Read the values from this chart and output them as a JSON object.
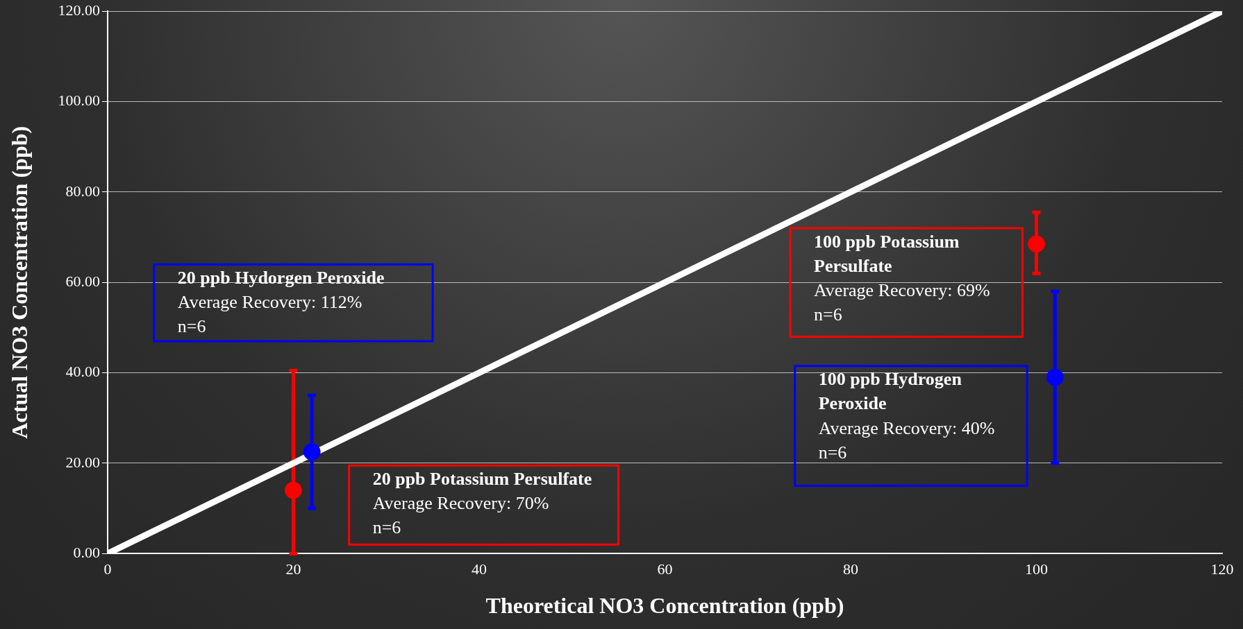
{
  "chart_data": {
    "type": "scatter",
    "xlabel": "Theoretical NO3 Concentration (ppb)",
    "ylabel": "Actual NO3 Concentration (ppb)",
    "xlim": [
      0,
      120
    ],
    "xticks": [
      0,
      20,
      40,
      60,
      80,
      100,
      120
    ],
    "ylim": [
      0,
      120
    ],
    "yticks": [
      {
        "value": 0,
        "label": "0.00"
      },
      {
        "value": 20,
        "label": "20.00"
      },
      {
        "value": 40,
        "label": "40.00"
      },
      {
        "value": 60,
        "label": "60.00"
      },
      {
        "value": 80,
        "label": "80.00"
      },
      {
        "value": 100,
        "label": "100.00"
      },
      {
        "value": 120,
        "label": "120.00"
      }
    ],
    "grid": "y",
    "legend": false,
    "series": [
      {
        "type": "line",
        "color": "#ffffff",
        "x": [
          0,
          120
        ],
        "values": [
          0,
          120
        ]
      },
      {
        "color": "#ff0000",
        "marker": "circle",
        "x": [
          20,
          100
        ],
        "values": [
          14,
          68.5
        ],
        "errors": [
          [
            0,
            40.5
          ],
          [
            62,
            75.5
          ]
        ]
      },
      {
        "color": "#0000ff",
        "marker": "circle",
        "x": [
          22,
          102
        ],
        "values": [
          22.5,
          39
        ],
        "errors": [
          [
            10,
            35
          ],
          [
            20,
            58
          ]
        ]
      }
    ],
    "annotations": [
      "20 ppb Hydorgen Peroxide\nAverage Recovery: 112%\nn=6",
      "20 ppb Potassium Persulfate\nAverage Recovery: 70%\nn=6",
      "100 ppb Potassium Persulfate\nAverage Recovery: 69%\nn=6",
      "100 ppb Hydrogen Peroxide\nAverage Recovery: 40%\nn=6"
    ]
  }
}
